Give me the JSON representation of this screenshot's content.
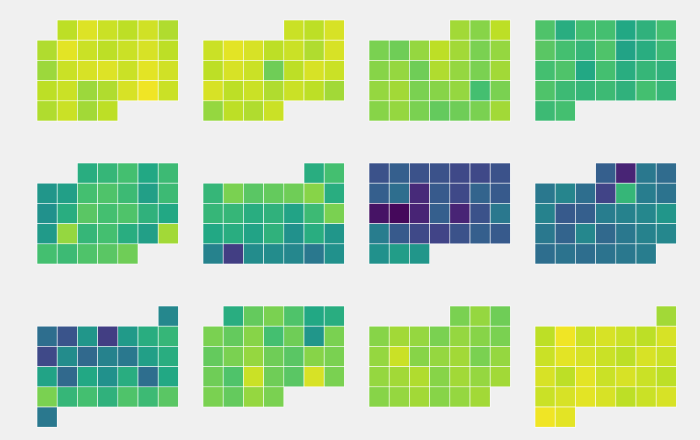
{
  "chart_data": {
    "type": "calendar",
    "colormap": "viridis",
    "vlim": [
      0,
      1
    ],
    "months": [
      {
        "values": [
          0.9,
          0.95,
          0.92,
          0.9,
          0.93,
          0.88,
          0.88,
          0.96,
          0.92,
          0.9,
          0.92,
          0.94,
          0.9,
          0.85,
          0.92,
          0.94,
          0.95,
          0.92,
          0.96,
          0.93,
          0.9,
          0.92,
          0.85,
          0.88,
          0.94,
          0.98,
          0.92,
          0.88,
          0.92,
          0.86,
          0.9
        ]
      },
      {
        "values": [
          0.92,
          0.9,
          0.94,
          0.92,
          0.96,
          0.94,
          0.9,
          0.92,
          0.88,
          0.94,
          0.9,
          0.94,
          0.92,
          0.78,
          0.9,
          0.94,
          0.92,
          0.94,
          0.9,
          0.92,
          0.88,
          0.92,
          0.9,
          0.86,
          0.84,
          0.9,
          0.88,
          0.92
        ]
      },
      {
        "values": [
          0.86,
          0.82,
          0.9,
          0.8,
          0.78,
          0.84,
          0.9,
          0.86,
          0.8,
          0.84,
          0.82,
          0.84,
          0.78,
          0.88,
          0.84,
          0.8,
          0.86,
          0.84,
          0.86,
          0.8,
          0.82,
          0.84,
          0.7,
          0.8,
          0.82,
          0.84,
          0.8,
          0.76,
          0.78,
          0.8,
          0.86
        ]
      },
      {
        "values": [
          0.72,
          0.62,
          0.7,
          0.7,
          0.6,
          0.64,
          0.7,
          0.74,
          0.7,
          0.66,
          0.72,
          0.58,
          0.62,
          0.68,
          0.7,
          0.72,
          0.6,
          0.7,
          0.62,
          0.66,
          0.64,
          0.72,
          0.68,
          0.66,
          0.68,
          0.64,
          0.7,
          0.66,
          0.68,
          0.7
        ]
      },
      {
        "values": [
          0.62,
          0.66,
          0.7,
          0.6,
          0.68,
          0.52,
          0.56,
          0.7,
          0.72,
          0.68,
          0.56,
          0.68,
          0.5,
          0.62,
          0.74,
          0.7,
          0.72,
          0.64,
          0.6,
          0.54,
          0.84,
          0.66,
          0.7,
          0.62,
          0.56,
          0.86,
          0.7,
          0.68,
          0.72,
          0.74,
          0.78
        ]
      },
      {
        "values": [
          0.62,
          0.7,
          0.66,
          0.8,
          0.74,
          0.76,
          0.78,
          0.82,
          0.62,
          0.66,
          0.66,
          0.62,
          0.64,
          0.58,
          0.68,
          0.8,
          0.6,
          0.62,
          0.58,
          0.64,
          0.5,
          0.62,
          0.52,
          0.44,
          0.18,
          0.48,
          0.48,
          0.46,
          0.4,
          0.5
        ]
      },
      {
        "values": [
          0.25,
          0.3,
          0.25,
          0.25,
          0.22,
          0.22,
          0.25,
          0.3,
          0.36,
          0.12,
          0.28,
          0.22,
          0.32,
          0.28,
          0.05,
          0.02,
          0.1,
          0.3,
          0.1,
          0.25,
          0.4,
          0.42,
          0.28,
          0.22,
          0.2,
          0.25,
          0.3,
          0.28,
          0.5,
          0.55,
          0.52
        ]
      },
      {
        "values": [
          0.3,
          0.1,
          0.4,
          0.35,
          0.4,
          0.45,
          0.36,
          0.2,
          0.66,
          0.42,
          0.38,
          0.44,
          0.28,
          0.3,
          0.42,
          0.44,
          0.46,
          0.52,
          0.4,
          0.32,
          0.46,
          0.34,
          0.4,
          0.44,
          0.46,
          0.36,
          0.38,
          0.36,
          0.38,
          0.4,
          0.42
        ]
      },
      {
        "values": [
          0.46,
          0.36,
          0.26,
          0.52,
          0.18,
          0.54,
          0.62,
          0.66,
          0.22,
          0.48,
          0.34,
          0.44,
          0.4,
          0.56,
          0.62,
          0.58,
          0.34,
          0.6,
          0.5,
          0.62,
          0.36,
          0.6,
          0.8,
          0.66,
          0.7,
          0.64,
          0.72,
          0.68,
          0.74,
          0.4
        ]
      },
      {
        "values": [
          0.62,
          0.76,
          0.8,
          0.72,
          0.6,
          0.62,
          0.8,
          0.76,
          0.82,
          0.7,
          0.78,
          0.52,
          0.8,
          0.76,
          0.8,
          0.84,
          0.78,
          0.74,
          0.82,
          0.8,
          0.78,
          0.72,
          0.92,
          0.78,
          0.74,
          0.94,
          0.8,
          0.8,
          0.76,
          0.84,
          0.8
        ]
      },
      {
        "values": [
          0.8,
          0.84,
          0.78,
          0.82,
          0.86,
          0.84,
          0.8,
          0.84,
          0.82,
          0.8,
          0.84,
          0.92,
          0.82,
          0.84,
          0.86,
          0.8,
          0.84,
          0.84,
          0.86,
          0.88,
          0.82,
          0.86,
          0.84,
          0.86,
          0.82,
          0.84,
          0.86,
          0.82,
          0.84,
          0.86
        ]
      },
      {
        "values": [
          0.86,
          0.9,
          0.98,
          0.92,
          0.94,
          0.92,
          0.9,
          0.94,
          0.92,
          0.96,
          0.94,
          0.92,
          0.9,
          0.94,
          0.92,
          0.94,
          0.9,
          0.96,
          0.92,
          0.94,
          0.92,
          0.9,
          0.92,
          0.94,
          0.96,
          0.94,
          0.9,
          0.92,
          0.94,
          0.98,
          0.96
        ]
      }
    ]
  }
}
